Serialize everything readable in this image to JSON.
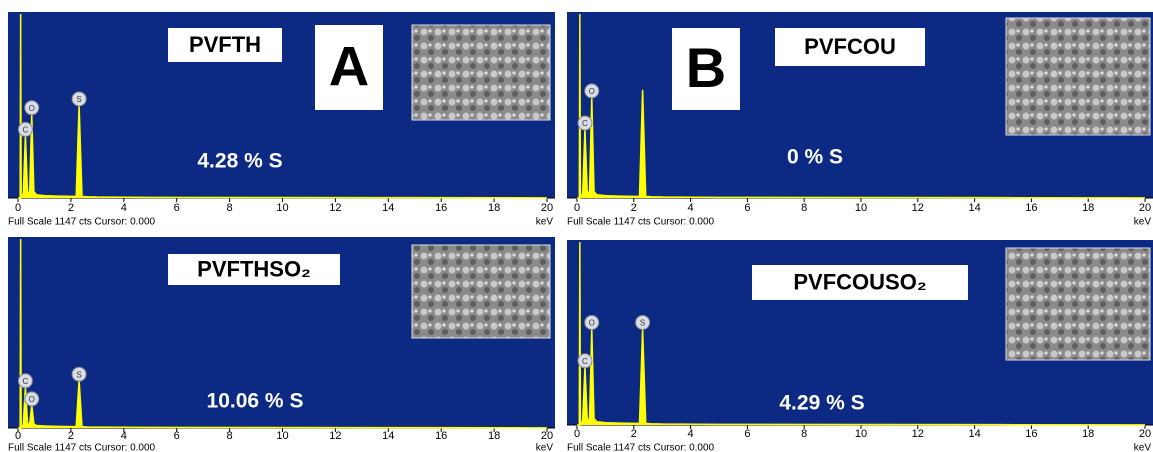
{
  "chart_data": [
    {
      "type": "line",
      "title": "PVFTH",
      "panel_label": "A",
      "annotation": "4.28 % S",
      "footer": "Full Scale 1147 cts Cursor: 0.000",
      "x_unit": "keV",
      "color": "#ffff00",
      "x": [
        0,
        0.08,
        0.1,
        0.12,
        0.2,
        0.28,
        0.36,
        0.44,
        0.52,
        0.6,
        0.7,
        1.0,
        1.5,
        2.2,
        2.31,
        2.42,
        2.6,
        3,
        5,
        10,
        15,
        20
      ],
      "values": [
        0,
        0,
        1147,
        0,
        30,
        390,
        40,
        30,
        525,
        40,
        20,
        15,
        12,
        10,
        580,
        10,
        8,
        6,
        4,
        3,
        2,
        1
      ],
      "peaks": [
        {
          "label": "C",
          "x": 0.28
        },
        {
          "label": "O",
          "x": 0.52
        },
        {
          "label": "S",
          "x": 2.31
        }
      ],
      "xlim": [
        0,
        20
      ],
      "xticks": [
        0,
        2,
        4,
        6,
        8,
        10,
        12,
        14,
        16,
        18,
        20
      ],
      "ylim": [
        0,
        1147
      ]
    },
    {
      "type": "line",
      "title": "PVFCOU",
      "panel_label": "B",
      "annotation": "0 % S",
      "footer": "Full Scale 1147 cts Cursor: 0.000",
      "x_unit": "keV",
      "color": "#ffff00",
      "x": [
        0,
        0.08,
        0.1,
        0.12,
        0.2,
        0.28,
        0.36,
        0.44,
        0.52,
        0.6,
        0.7,
        1.0,
        1.5,
        2.2,
        2.31,
        2.42,
        2.6,
        3,
        5,
        10,
        15,
        20
      ],
      "values": [
        0,
        0,
        1147,
        0,
        30,
        430,
        40,
        30,
        630,
        40,
        20,
        15,
        12,
        10,
        675,
        10,
        8,
        6,
        4,
        3,
        2,
        1
      ],
      "peaks": [
        {
          "label": "C",
          "x": 0.28
        },
        {
          "label": "O",
          "x": 0.52
        }
      ],
      "xlim": [
        0,
        20
      ],
      "xticks": [
        0,
        2,
        4,
        6,
        8,
        10,
        12,
        14,
        16,
        18,
        20
      ],
      "ylim": [
        0,
        1147
      ]
    },
    {
      "type": "line",
      "title": "PVFTHSO₂",
      "annotation": "10.06 % S",
      "footer": "Full Scale 1147 cts Cursor: 0.000",
      "x_unit": "keV",
      "color": "#ffff00",
      "x": [
        0,
        0.08,
        0.1,
        0.12,
        0.2,
        0.28,
        0.36,
        0.44,
        0.52,
        0.6,
        0.7,
        1.0,
        1.5,
        2.2,
        2.31,
        2.42,
        2.6,
        3,
        5,
        10,
        15,
        20
      ],
      "values": [
        0,
        0,
        1147,
        0,
        20,
        250,
        30,
        20,
        140,
        25,
        15,
        12,
        10,
        8,
        290,
        8,
        6,
        5,
        4,
        3,
        2,
        1
      ],
      "peaks": [
        {
          "label": "C",
          "x": 0.28
        },
        {
          "label": "O",
          "x": 0.52
        },
        {
          "label": "S",
          "x": 2.31
        }
      ],
      "xlim": [
        0,
        20
      ],
      "xticks": [
        0,
        2,
        4,
        6,
        8,
        10,
        12,
        14,
        16,
        18,
        20
      ],
      "ylim": [
        0,
        1147
      ]
    },
    {
      "type": "line",
      "title": "PVFCOUSO₂",
      "annotation": "4.29 % S",
      "footer": "Full Scale 1147 cts Cursor: 0.000",
      "x_unit": "keV",
      "color": "#ffff00",
      "x": [
        0,
        0.08,
        0.1,
        0.12,
        0.2,
        0.28,
        0.36,
        0.44,
        0.52,
        0.6,
        0.7,
        1.0,
        1.5,
        2.2,
        2.31,
        2.42,
        2.6,
        3,
        5,
        10,
        15,
        20
      ],
      "values": [
        0,
        0,
        1147,
        0,
        30,
        365,
        40,
        30,
        605,
        40,
        20,
        15,
        12,
        10,
        605,
        10,
        8,
        6,
        4,
        3,
        2,
        1
      ],
      "peaks": [
        {
          "label": "C",
          "x": 0.28
        },
        {
          "label": "O",
          "x": 0.52
        },
        {
          "label": "S",
          "x": 2.31
        }
      ],
      "xlim": [
        0,
        20
      ],
      "xticks": [
        0,
        2,
        4,
        6,
        8,
        10,
        12,
        14,
        16,
        18,
        20
      ],
      "ylim": [
        0,
        1147
      ]
    }
  ]
}
